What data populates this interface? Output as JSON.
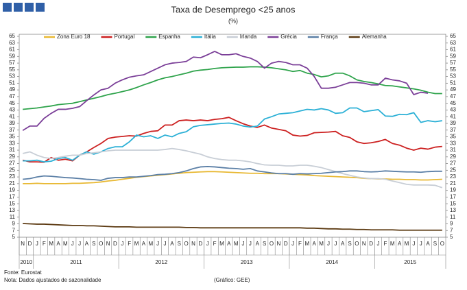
{
  "chart_data": {
    "type": "line",
    "title": "Taxa de Desemprego <25 anos",
    "subtitle": "(%)",
    "source": "Fonte: Eurostat",
    "note": "Nota: Dados ajustados de sazonalidade",
    "credit": "(Gráfico: GEE)",
    "categories": [
      "N",
      "D",
      "J",
      "F",
      "M",
      "A",
      "M",
      "J",
      "J",
      "A",
      "S",
      "O",
      "N",
      "D",
      "J",
      "F",
      "M",
      "A",
      "M",
      "J",
      "J",
      "A",
      "S",
      "O",
      "N",
      "D",
      "J",
      "F",
      "M",
      "A",
      "M",
      "J",
      "J",
      "A",
      "S",
      "O",
      "N",
      "D",
      "J",
      "F",
      "M",
      "A",
      "M",
      "J",
      "J",
      "A",
      "S",
      "O",
      "N",
      "D",
      "J",
      "F",
      "M",
      "A",
      "M",
      "J",
      "J",
      "A",
      "S",
      "O"
    ],
    "years": [
      "2010",
      "2011",
      "2012",
      "2013",
      "2014",
      "2015"
    ],
    "ylim": [
      5,
      65
    ],
    "yticks": [
      5,
      7,
      9,
      11,
      13,
      15,
      17,
      19,
      21,
      23,
      25,
      27,
      29,
      31,
      33,
      35,
      37,
      39,
      41,
      43,
      45,
      47,
      49,
      51,
      53,
      55,
      57,
      59,
      61,
      63,
      65
    ],
    "grid": false,
    "legend": "top",
    "series": [
      {
        "name": "Zona Euro 18",
        "color": "#e8b832",
        "values": [
          21.0,
          21.0,
          21.1,
          21.0,
          21.0,
          21.0,
          21.0,
          21.1,
          21.1,
          21.2,
          21.3,
          21.5,
          21.8,
          22.0,
          22.3,
          22.6,
          22.9,
          23.1,
          23.3,
          23.5,
          23.7,
          23.9,
          24.1,
          24.3,
          24.4,
          24.5,
          24.6,
          24.6,
          24.5,
          24.4,
          24.3,
          24.2,
          24.1,
          24.1,
          24.0,
          24.0,
          24.0,
          23.9,
          23.8,
          23.7,
          23.6,
          23.4,
          23.3,
          23.2,
          23.1,
          23.0,
          22.9,
          22.8,
          22.6,
          22.5,
          22.4,
          22.4,
          22.3,
          22.3,
          22.2,
          22.2,
          22.1,
          22.1,
          22.2,
          22.3
        ]
      },
      {
        "name": "Portugal",
        "color": "#cc1f1f",
        "values": [
          28.0,
          27.5,
          27.5,
          27.4,
          28.8,
          28.0,
          28.3,
          27.8,
          29.5,
          30.5,
          31.8,
          33.0,
          34.5,
          34.9,
          35.1,
          35.3,
          35.2,
          36.0,
          36.6,
          36.8,
          38.5,
          38.5,
          39.8,
          40.0,
          39.8,
          40.0,
          39.8,
          40.2,
          40.4,
          40.8,
          39.8,
          38.9,
          38.2,
          37.8,
          38.5,
          37.6,
          37.2,
          36.8,
          35.5,
          35.2,
          35.4,
          36.2,
          36.3,
          36.4,
          36.6,
          35.3,
          34.8,
          33.5,
          33.0,
          33.2,
          33.6,
          34.2,
          33.0,
          32.5,
          31.6,
          31.0,
          31.6,
          31.3,
          31.9,
          32.1
        ]
      },
      {
        "name": "Espanha",
        "color": "#2ea34b",
        "values": [
          43.2,
          43.4,
          43.6,
          43.9,
          44.2,
          44.6,
          44.8,
          45.0,
          45.5,
          46.0,
          46.5,
          47.0,
          47.6,
          48.0,
          48.5,
          49.0,
          49.7,
          50.5,
          51.2,
          52.0,
          52.6,
          53.0,
          53.5,
          54.0,
          54.6,
          54.9,
          55.1,
          55.4,
          55.6,
          55.7,
          55.8,
          55.8,
          55.9,
          55.9,
          55.8,
          55.6,
          55.3,
          55.0,
          54.5,
          54.8,
          54.0,
          53.6,
          52.9,
          53.2,
          54.0,
          54.0,
          53.2,
          52.0,
          51.5,
          51.2,
          50.8,
          50.3,
          50.2,
          49.9,
          49.6,
          49.3,
          48.9,
          48.3,
          47.9,
          47.9
        ]
      },
      {
        "name": "Itália",
        "color": "#2bb0d6",
        "values": [
          27.8,
          27.8,
          28.0,
          27.5,
          27.7,
          28.5,
          28.8,
          28.0,
          29.5,
          30.5,
          29.8,
          30.5,
          31.5,
          32.0,
          32.0,
          33.5,
          35.5,
          35.0,
          35.3,
          34.5,
          35.5,
          35.0,
          36.0,
          36.5,
          38.0,
          38.4,
          38.6,
          38.8,
          39.0,
          39.1,
          38.8,
          38.2,
          37.9,
          38.2,
          40.3,
          41.0,
          41.8,
          42.0,
          42.2,
          42.7,
          43.2,
          43.0,
          43.4,
          43.0,
          42.0,
          42.2,
          43.6,
          43.6,
          42.5,
          42.8,
          43.1,
          41.2,
          41.1,
          41.7,
          41.6,
          42.2,
          39.3,
          39.8,
          39.5,
          39.8
        ]
      },
      {
        "name": "Irlanda",
        "color": "#c8ced6",
        "values": [
          30.0,
          30.5,
          29.5,
          28.8,
          28.5,
          28.8,
          29.2,
          29.5,
          29.5,
          30.0,
          30.2,
          30.5,
          30.8,
          31.0,
          31.0,
          31.0,
          31.0,
          31.0,
          31.0,
          31.0,
          31.2,
          31.5,
          31.2,
          30.8,
          30.3,
          29.8,
          29.0,
          28.5,
          28.2,
          28.0,
          28.0,
          27.8,
          27.5,
          27.0,
          26.6,
          26.5,
          26.5,
          26.3,
          26.3,
          26.5,
          26.5,
          26.2,
          25.8,
          25.2,
          24.6,
          24.0,
          23.5,
          23.0,
          22.7,
          22.5,
          22.5,
          22.3,
          21.8,
          21.3,
          20.8,
          20.6,
          20.6,
          20.6,
          20.5,
          19.8
        ]
      },
      {
        "name": "Grécia",
        "color": "#7b3f98",
        "values": [
          36.9,
          38.2,
          38.2,
          40.5,
          42.0,
          43.2,
          43.2,
          43.5,
          44.0,
          45.8,
          47.5,
          49.0,
          49.5,
          51.0,
          52.0,
          52.8,
          53.2,
          53.5,
          54.5,
          55.5,
          56.5,
          57.0,
          57.2,
          57.5,
          58.8,
          58.6,
          59.5,
          60.5,
          59.5,
          59.5,
          59.8,
          59.0,
          58.5,
          57.5,
          55.5,
          57.0,
          57.5,
          57.2,
          56.5,
          56.5,
          55.5,
          53.0,
          49.5,
          49.5,
          49.8,
          50.5,
          51.2,
          51.2,
          51.0,
          50.5,
          50.5,
          52.5,
          52.0,
          51.7,
          51.0,
          47.6,
          48.3,
          48.0,
          null,
          null
        ]
      },
      {
        "name": "França",
        "color": "#5b7fa6",
        "values": [
          22.3,
          22.5,
          23.0,
          23.3,
          23.2,
          23.0,
          22.8,
          22.7,
          22.5,
          22.3,
          22.2,
          22.0,
          22.6,
          22.8,
          22.8,
          23.0,
          23.0,
          23.2,
          23.4,
          23.7,
          23.8,
          24.0,
          24.3,
          24.8,
          25.5,
          26.0,
          26.1,
          26.0,
          25.8,
          25.6,
          25.5,
          25.3,
          25.5,
          24.8,
          24.5,
          24.2,
          24.0,
          24.0,
          23.8,
          24.0,
          23.9,
          24.0,
          24.1,
          24.3,
          24.5,
          24.6,
          24.8,
          24.8,
          24.6,
          24.5,
          24.6,
          24.8,
          24.7,
          24.6,
          24.5,
          24.5,
          24.4,
          24.6,
          24.7,
          24.7
        ]
      },
      {
        "name": "Alemanha",
        "color": "#5c3a12",
        "values": [
          9.1,
          9.0,
          8.9,
          8.9,
          8.8,
          8.7,
          8.6,
          8.5,
          8.5,
          8.4,
          8.4,
          8.3,
          8.2,
          8.1,
          8.1,
          8.1,
          8.0,
          8.0,
          8.0,
          8.0,
          8.0,
          8.0,
          8.0,
          7.9,
          7.9,
          7.8,
          7.8,
          7.8,
          7.8,
          7.8,
          7.8,
          7.8,
          7.8,
          7.8,
          7.8,
          7.8,
          7.8,
          7.8,
          7.8,
          7.8,
          7.7,
          7.7,
          7.6,
          7.5,
          7.5,
          7.4,
          7.4,
          7.3,
          7.3,
          7.2,
          7.2,
          7.2,
          7.2,
          7.1,
          7.1,
          7.1,
          7.1,
          7.1,
          7.1,
          7.1
        ]
      }
    ]
  }
}
